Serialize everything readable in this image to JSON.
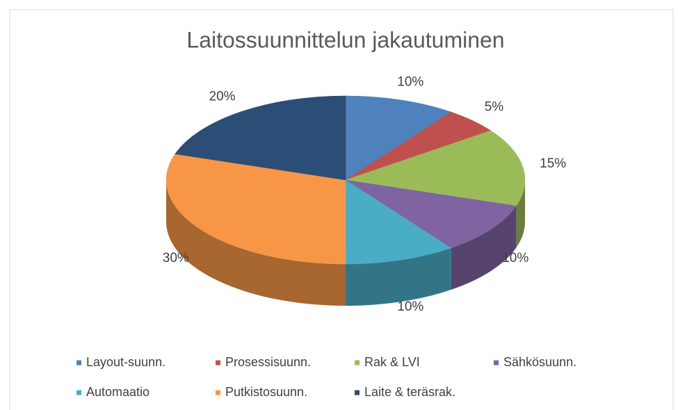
{
  "chart_data": {
    "type": "pie3d",
    "title": "Laitossuunnittelun jakautuminen",
    "categories": [
      "Layout-suunn.",
      "Prosessisuunn.",
      "Rak & LVI",
      "Sähkösuunn.",
      "Automaatio",
      "Putkistosuunn.",
      "Laite & teräsrak."
    ],
    "values": [
      10,
      5,
      15,
      10,
      10,
      30,
      20
    ],
    "value_labels": [
      "10%",
      "5%",
      "15%",
      "10%",
      "10%",
      "30%",
      "20%"
    ],
    "colors": [
      "#4f81bd",
      "#c0504d",
      "#9bbb59",
      "#8064a2",
      "#4bacc6",
      "#f79646",
      "#2c4d75"
    ],
    "legend": "bottom"
  }
}
